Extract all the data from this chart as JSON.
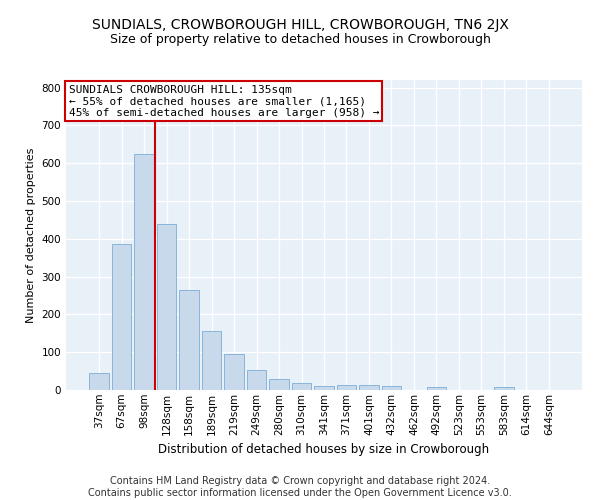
{
  "title": "SUNDIALS, CROWBOROUGH HILL, CROWBOROUGH, TN6 2JX",
  "subtitle": "Size of property relative to detached houses in Crowborough",
  "xlabel": "Distribution of detached houses by size in Crowborough",
  "ylabel": "Number of detached properties",
  "categories": [
    "37sqm",
    "67sqm",
    "98sqm",
    "128sqm",
    "158sqm",
    "189sqm",
    "219sqm",
    "249sqm",
    "280sqm",
    "310sqm",
    "341sqm",
    "371sqm",
    "401sqm",
    "432sqm",
    "462sqm",
    "492sqm",
    "523sqm",
    "553sqm",
    "583sqm",
    "614sqm",
    "644sqm"
  ],
  "values": [
    45,
    385,
    625,
    440,
    265,
    155,
    95,
    52,
    28,
    18,
    10,
    12,
    12,
    10,
    0,
    8,
    0,
    0,
    8,
    0,
    0
  ],
  "bar_color": "#c9d9ec",
  "bar_edge_color": "#7aaed6",
  "bg_color": "#e8f0f8",
  "grid_color": "#ffffff",
  "annotation_text": "SUNDIALS CROWBOROUGH HILL: 135sqm\n← 55% of detached houses are smaller (1,165)\n45% of semi-detached houses are larger (958) →",
  "annotation_box_color": "#ffffff",
  "annotation_box_edge": "#cc0000",
  "vline_color": "#cc0000",
  "vline_x": 2.5,
  "ylim": [
    0,
    820
  ],
  "yticks": [
    0,
    100,
    200,
    300,
    400,
    500,
    600,
    700,
    800
  ],
  "footer": "Contains HM Land Registry data © Crown copyright and database right 2024.\nContains public sector information licensed under the Open Government Licence v3.0.",
  "title_fontsize": 10,
  "subtitle_fontsize": 9,
  "ylabel_fontsize": 8,
  "xlabel_fontsize": 8.5,
  "tick_fontsize": 7.5,
  "footer_fontsize": 7,
  "ann_fontsize": 8
}
